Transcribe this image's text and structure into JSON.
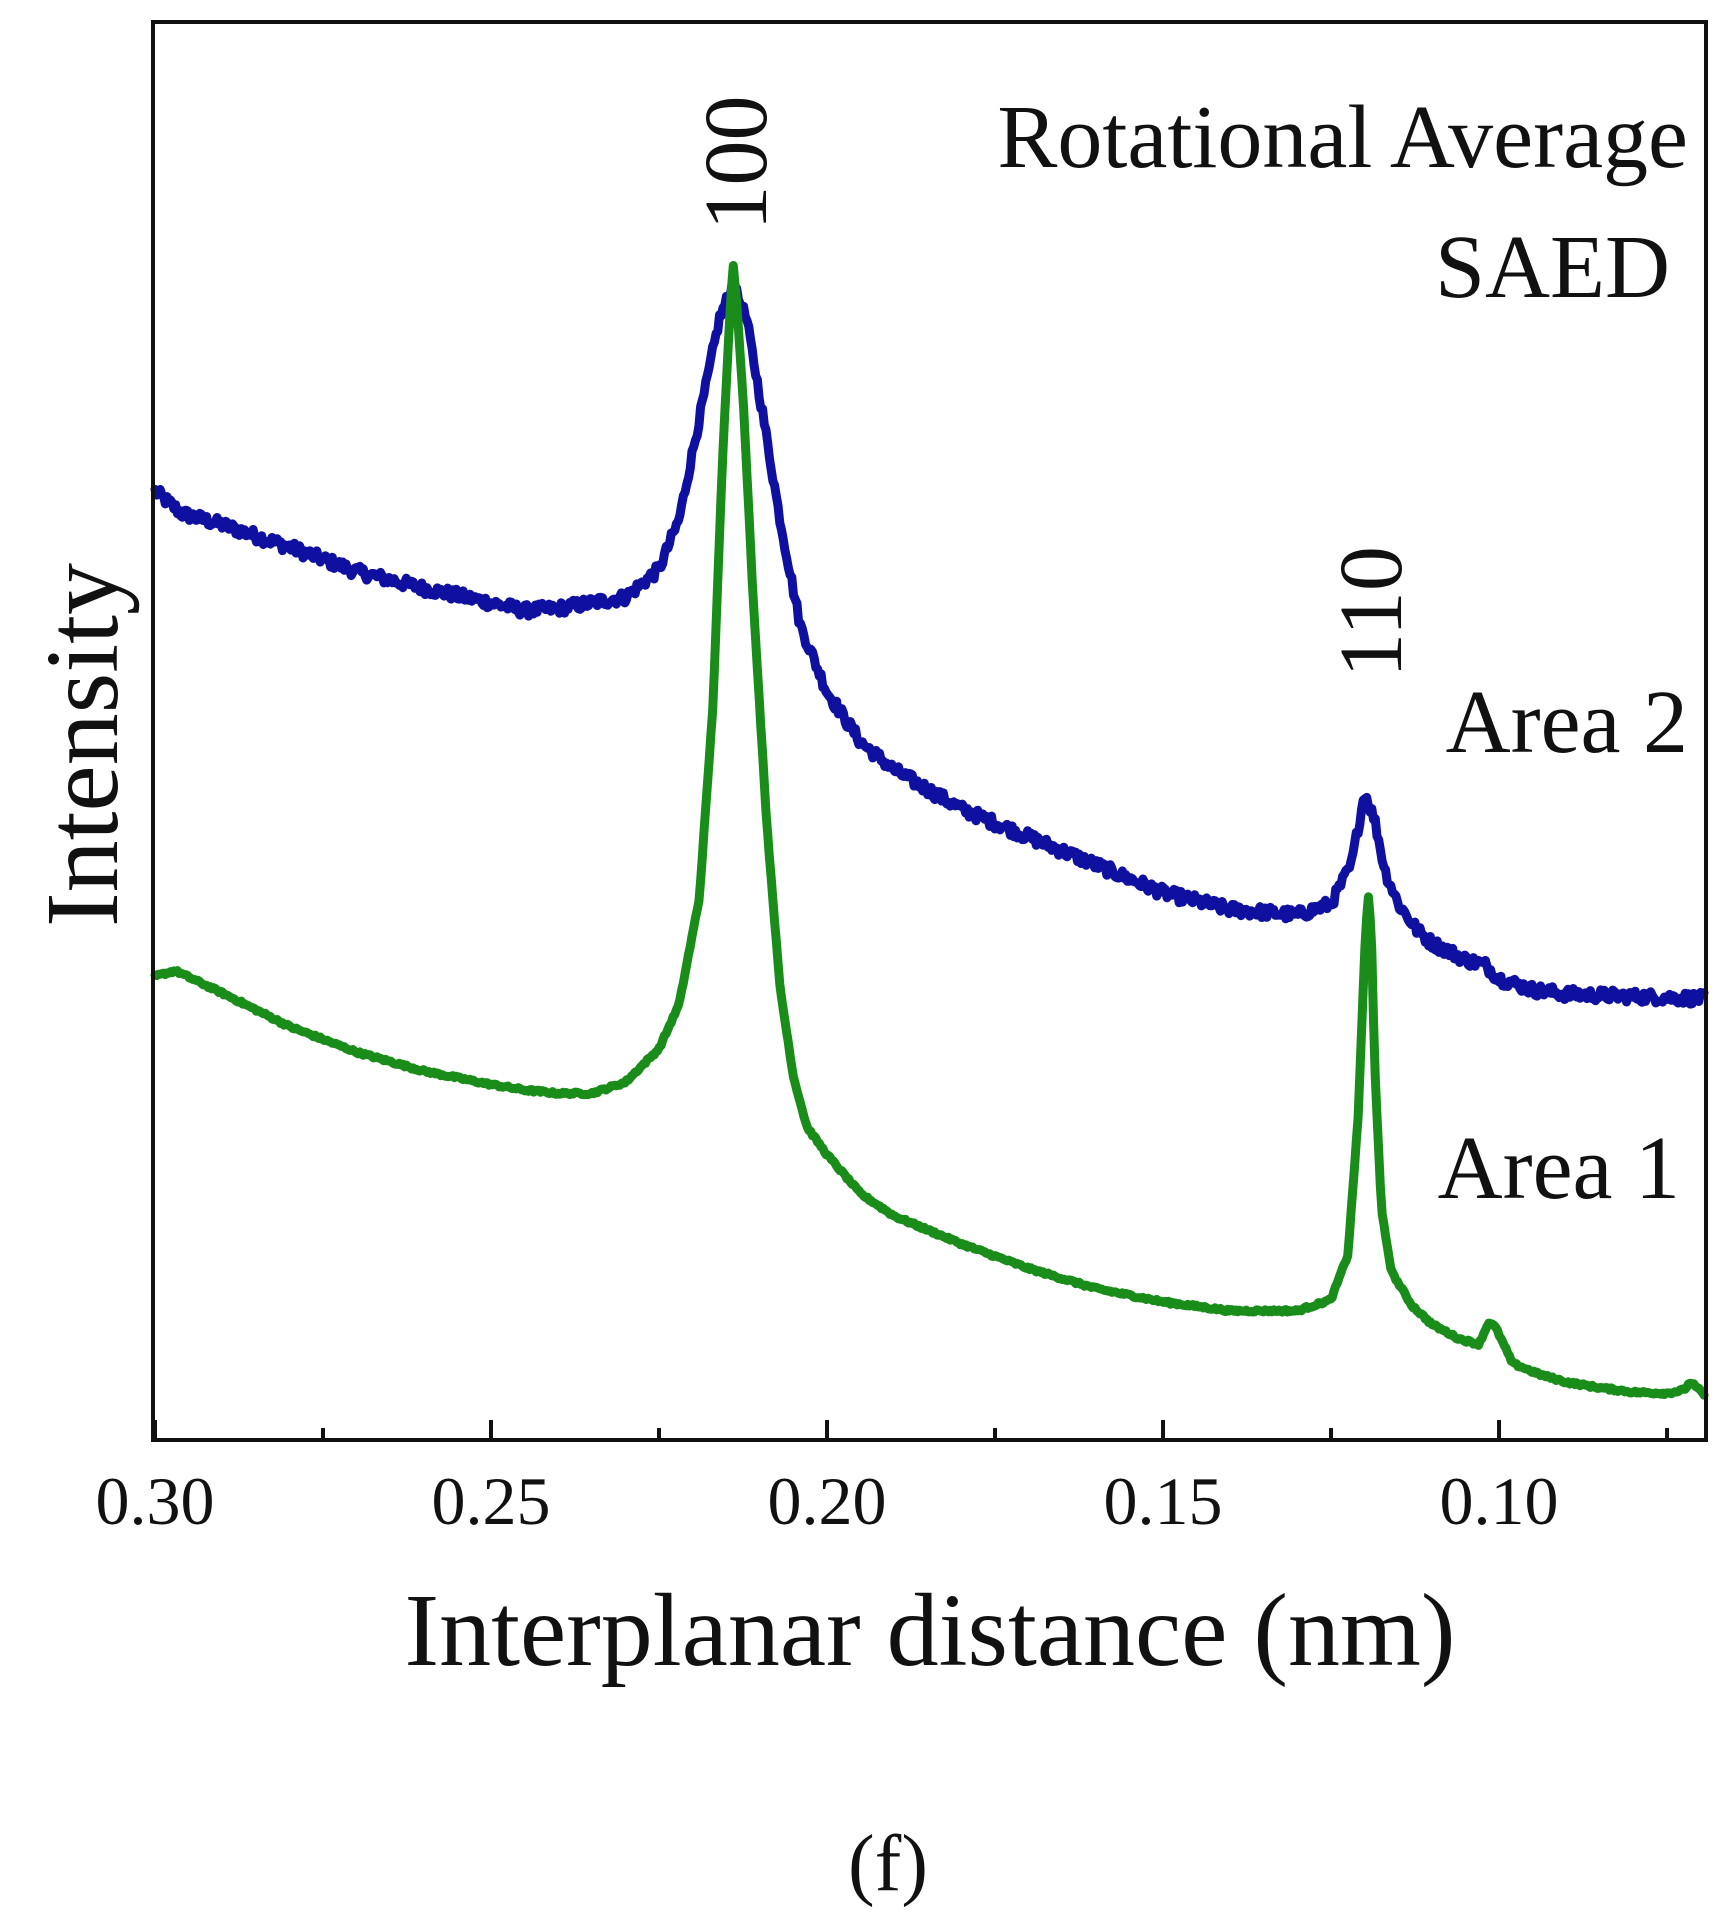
{
  "chart_data": {
    "type": "line",
    "title": "",
    "xlabel": "Interplanar distance (nm)",
    "ylabel": "Intensity",
    "xlim": [
      0.3,
      0.0695
    ],
    "ylim": [
      0,
      100
    ],
    "x_reversed": true,
    "grid": false,
    "x_ticks": [
      0.3,
      0.25,
      0.2,
      0.15,
      0.1
    ],
    "x_tick_labels": [
      "0.30",
      "0.25",
      "0.20",
      "0.15",
      "0.10"
    ],
    "x_minor_ticks": [
      0.275,
      0.225,
      0.175,
      0.125,
      0.075
    ],
    "y_ticks_visible": false,
    "annotations": {
      "header_line1": "Rotational Average",
      "header_line2": "SAED",
      "peak_100": "100",
      "peak_110": "110",
      "peak_100_x": 0.214,
      "peak_110_x": 0.1195
    },
    "panel_label": "(f)",
    "series": [
      {
        "name": "Area 2",
        "color": "#1010a0",
        "noise": 0.55,
        "x": [
          0.3,
          0.296,
          0.29,
          0.28,
          0.27,
          0.26,
          0.25,
          0.245,
          0.24,
          0.23,
          0.225,
          0.222,
          0.219,
          0.216,
          0.214,
          0.212,
          0.21,
          0.207,
          0.204,
          0.2,
          0.195,
          0.19,
          0.18,
          0.17,
          0.16,
          0.15,
          0.14,
          0.13,
          0.125,
          0.122,
          0.12,
          0.1185,
          0.117,
          0.115,
          0.112,
          0.11,
          0.105,
          0.102,
          0.1,
          0.095,
          0.09,
          0.08,
          0.0695
        ],
        "y": [
          81.5,
          79.5,
          78.5,
          76.5,
          74.3,
          72.8,
          71.5,
          70.8,
          71.0,
          72.0,
          74.5,
          79.0,
          88.0,
          97.0,
          100.0,
          97.0,
          90.0,
          79.0,
          69.5,
          63.5,
          59.0,
          56.5,
          53.0,
          50.5,
          48.0,
          45.5,
          44.0,
          43.5,
          44.5,
          48.0,
          54.5,
          52.0,
          47.5,
          44.5,
          42.0,
          41.0,
          39.5,
          39.0,
          37.8,
          36.8,
          36.4,
          36.2,
          36.0
        ]
      },
      {
        "name": "Area 1",
        "color": "#1a8c1a",
        "noise": 0.12,
        "x": [
          0.3,
          0.297,
          0.29,
          0.28,
          0.27,
          0.26,
          0.25,
          0.245,
          0.24,
          0.235,
          0.23,
          0.225,
          0.222,
          0.219,
          0.217,
          0.2155,
          0.2145,
          0.214,
          0.2135,
          0.2125,
          0.211,
          0.209,
          0.207,
          0.205,
          0.203,
          0.2,
          0.195,
          0.19,
          0.18,
          0.17,
          0.16,
          0.15,
          0.14,
          0.13,
          0.125,
          0.1225,
          0.121,
          0.12,
          0.1195,
          0.119,
          0.1185,
          0.1175,
          0.116,
          0.113,
          0.11,
          0.106,
          0.103,
          0.1015,
          0.1005,
          0.098,
          0.094,
          0.09,
          0.085,
          0.08,
          0.075,
          0.0725,
          0.0715,
          0.07,
          0.0695
        ],
        "y": [
          38.0,
          38.5,
          36.5,
          33.5,
          31.2,
          29.5,
          28.3,
          27.8,
          27.5,
          27.5,
          28.5,
          31.5,
          35.5,
          45.0,
          62.0,
          85.0,
          97.0,
          102.0,
          99.0,
          90.0,
          72.0,
          52.0,
          37.0,
          29.0,
          24.5,
          22.0,
          18.5,
          16.5,
          14.0,
          11.8,
          10.0,
          8.8,
          8.0,
          8.0,
          9.0,
          13.0,
          25.0,
          40.0,
          45.5,
          42.0,
          30.0,
          17.0,
          11.5,
          8.5,
          6.8,
          5.5,
          5.0,
          7.0,
          6.5,
          3.3,
          2.3,
          1.6,
          1.1,
          0.7,
          0.6,
          0.9,
          1.6,
          0.8,
          0.5
        ]
      }
    ]
  }
}
